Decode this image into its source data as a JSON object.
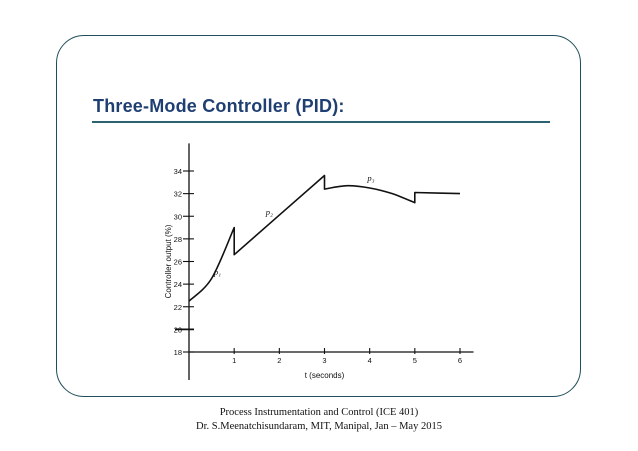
{
  "slide": {
    "title": "Three-Mode Controller (PID):",
    "footer_line_1": "Process Instrumentation and Control (ICE 401)",
    "footer_line_2": "Dr. S.Meenatchisundaram, MIT, Manipal, Jan – May 2015"
  },
  "colors": {
    "title": "#1f3f73",
    "frame_border": "#1f4f5a",
    "title_rule": "#2b6470",
    "plot": "#111111"
  },
  "chart_data": {
    "type": "line",
    "title": "",
    "xlabel": "t (seconds)",
    "ylabel": "Controller output (%)",
    "xlim": [
      0,
      6.3
    ],
    "ylim": [
      17,
      36
    ],
    "x_ticks": [
      1,
      2,
      3,
      4,
      5,
      6
    ],
    "y_ticks": [
      18,
      20,
      22,
      24,
      26,
      28,
      30,
      32,
      34
    ],
    "grid": false,
    "series": [
      {
        "values": [
          [
            0,
            22.5
          ],
          [
            0.5,
            24.5
          ],
          [
            1,
            29
          ],
          [
            1,
            26.6
          ],
          [
            3,
            33.6
          ],
          [
            3,
            32.4
          ],
          [
            3.5,
            32.7
          ],
          [
            4,
            32.5
          ],
          [
            4.5,
            32
          ],
          [
            5,
            31.2
          ],
          [
            5,
            32.1
          ],
          [
            6,
            32
          ]
        ]
      }
    ],
    "annotations": [
      {
        "text": "p₁",
        "x": 0.55,
        "y": 24.8
      },
      {
        "text": "p₂",
        "x": 1.7,
        "y": 30.1
      },
      {
        "text": "p₃",
        "x": 3.95,
        "y": 33.1
      }
    ]
  }
}
